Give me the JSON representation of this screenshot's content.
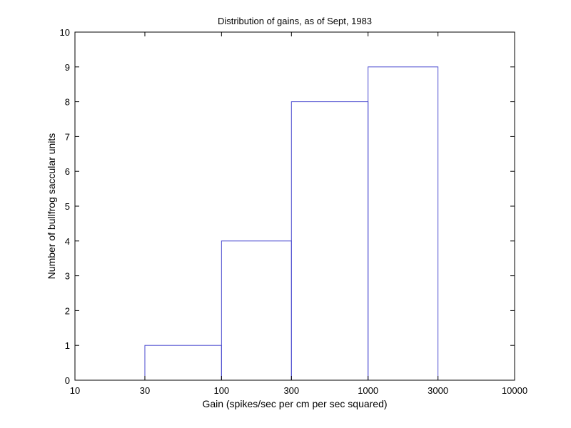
{
  "chart_data": {
    "type": "bar",
    "title": "Distribution of gains, as of Sept, 1983",
    "xlabel": "Gain (spikes/sec per cm per sec squared)",
    "ylabel": "Number of bullfrog saccular units",
    "x_scale": "log",
    "xlim": [
      10,
      10000
    ],
    "ylim": [
      0,
      10
    ],
    "x_ticks": [
      10,
      30,
      100,
      300,
      1000,
      3000,
      10000
    ],
    "x_tick_labels": [
      "10",
      "30",
      "100",
      "300",
      "1000",
      "3000",
      "10000"
    ],
    "y_ticks": [
      0,
      1,
      2,
      3,
      4,
      5,
      6,
      7,
      8,
      9,
      10
    ],
    "y_tick_labels": [
      "0",
      "1",
      "2",
      "3",
      "4",
      "5",
      "6",
      "7",
      "8",
      "9",
      "10"
    ],
    "bins": [
      {
        "x0": 30,
        "x1": 100,
        "value": 1
      },
      {
        "x0": 100,
        "x1": 300,
        "value": 4
      },
      {
        "x0": 300,
        "x1": 1000,
        "value": 8
      },
      {
        "x0": 1000,
        "x1": 3000,
        "value": 9
      }
    ],
    "bar_fill": "none",
    "bar_edge_color": "#4a4acf",
    "grid": false
  }
}
